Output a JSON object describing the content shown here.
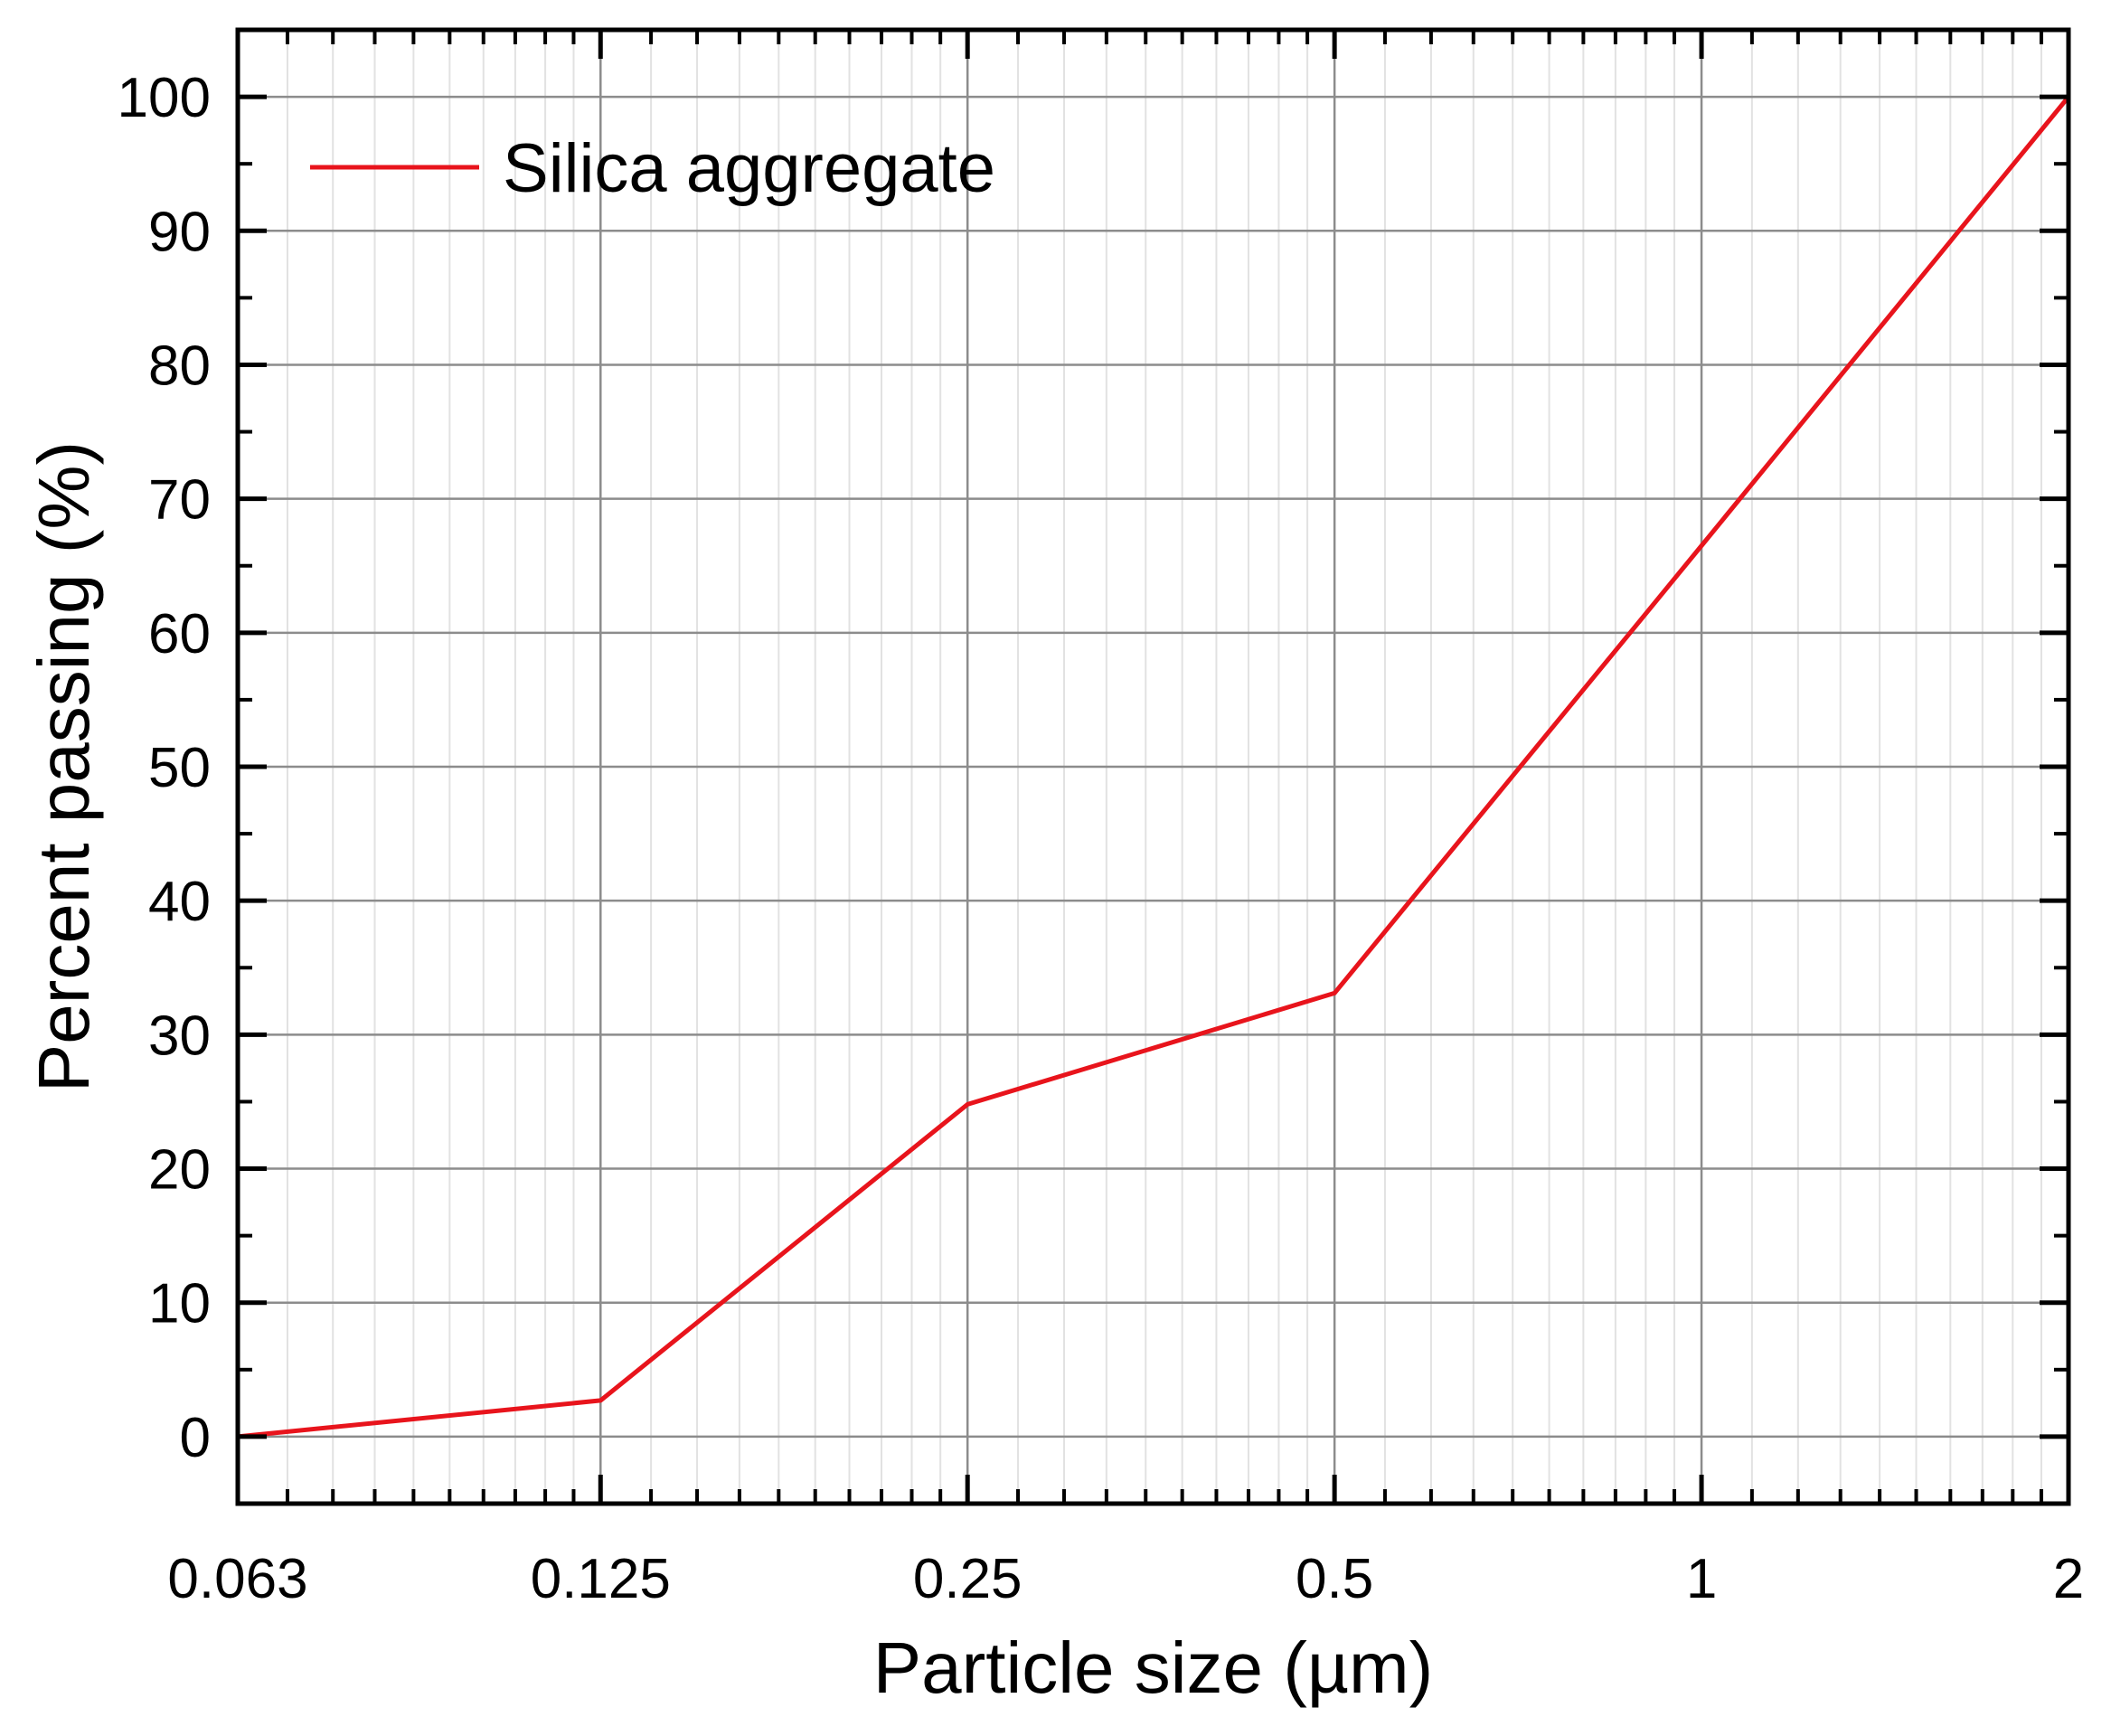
{
  "chart_data": {
    "type": "line",
    "xlabel": "Particle size (µm)",
    "ylabel": "Percent passing (%)",
    "x_scale": "log2",
    "xlim": [
      0.063,
      2
    ],
    "ylim": [
      -5,
      105
    ],
    "x_ticks": [
      0.063,
      0.125,
      0.25,
      0.5,
      1,
      2
    ],
    "x_tick_labels": [
      "0.063",
      "0.125",
      "0.25",
      "0.5",
      "1",
      "2"
    ],
    "y_ticks": [
      0,
      10,
      20,
      30,
      40,
      50,
      60,
      70,
      80,
      90,
      100
    ],
    "y_tick_labels": [
      "0",
      "10",
      "20",
      "30",
      "40",
      "50",
      "60",
      "70",
      "80",
      "90",
      "100"
    ],
    "grid": true,
    "legend_position": "top-left",
    "series": [
      {
        "name": "Silica aggregate",
        "color": "#e8141c",
        "x": [
          0.063,
          0.125,
          0.25,
          0.5,
          1,
          2
        ],
        "y": [
          0,
          2.7,
          24.8,
          33.1,
          66.5,
          100
        ]
      }
    ]
  }
}
